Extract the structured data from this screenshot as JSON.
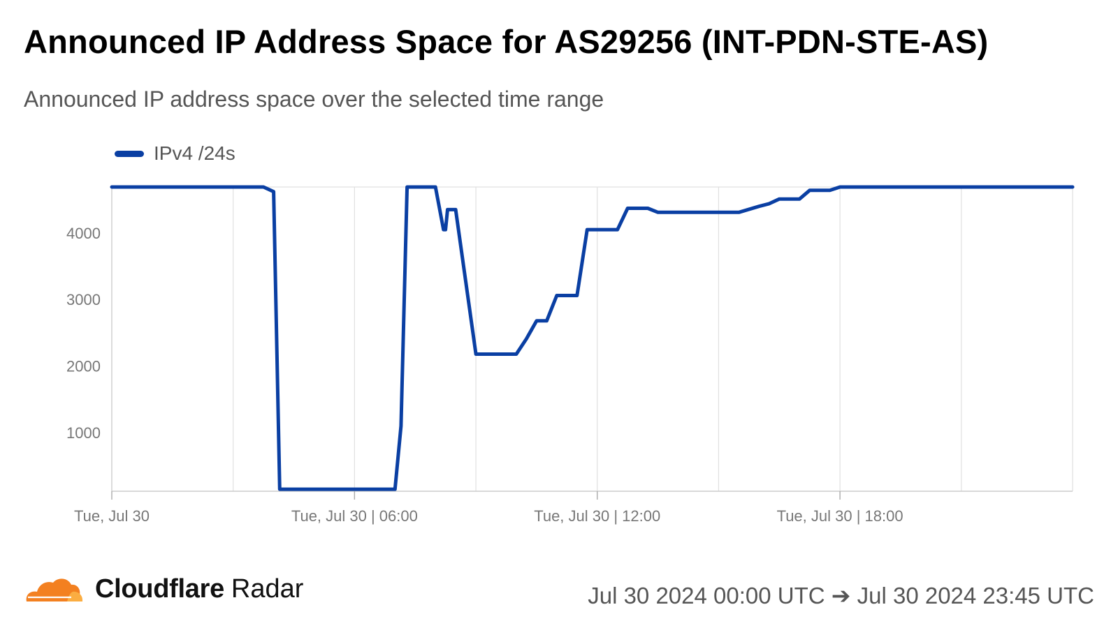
{
  "header": {
    "title": "Announced IP Address Space for AS29256 (INT-PDN-STE-AS)",
    "subtitle": "Announced IP address space over the selected time range"
  },
  "footer": {
    "brand_strong": "Cloudflare",
    "brand_light": "Radar",
    "range_start": "Jul 30 2024 00:00 UTC",
    "range_arrow": "➔",
    "range_end": "Jul 30 2024 23:45 UTC"
  },
  "colors": {
    "series": "#0a3fa3",
    "grid": "#e0e0e0",
    "axis": "#cccccc",
    "logo_orange": "#f38020",
    "logo_light": "#fbad41"
  },
  "icons": {
    "logo": "cloudflare-cloud-icon"
  },
  "chart_data": {
    "type": "line",
    "title": "Announced IP Address Space for AS29256 (INT-PDN-STE-AS)",
    "subtitle": "Announced IP address space over the selected time range",
    "x_unit": "hours",
    "xlim": [
      0,
      23.75
    ],
    "ylim": [
      120,
      4690
    ],
    "yticks": [
      1000,
      2000,
      3000,
      4000
    ],
    "ytick_labels": [
      "1000",
      "2000",
      "3000",
      "4000"
    ],
    "xticks": [
      0,
      6,
      12,
      18
    ],
    "xtick_labels": [
      "Tue, Jul 30",
      "Tue, Jul 30 | 06:00",
      "Tue, Jul 30 | 12:00",
      "Tue, Jul 30 | 18:00"
    ],
    "grid": true,
    "legend_position": "top-left",
    "series": [
      {
        "name": "IPv4 /24s",
        "color": "#0a3fa3",
        "x": [
          0,
          3.75,
          4.0,
          4.15,
          4.3,
          6.0,
          7.0,
          7.15,
          7.3,
          7.45,
          7.6,
          8.0,
          8.2,
          8.25,
          8.3,
          8.5,
          9.0,
          9.5,
          10.0,
          10.25,
          10.5,
          10.75,
          11.0,
          11.25,
          11.5,
          11.75,
          12.0,
          12.5,
          12.75,
          13.0,
          13.25,
          13.5,
          13.75,
          14.0,
          14.5,
          15.0,
          15.5,
          16.0,
          16.25,
          16.5,
          16.75,
          17.0,
          17.25,
          17.5,
          17.75,
          18.0,
          18.25,
          18.5,
          18.75,
          19.0,
          19.5,
          20.0,
          20.5,
          21.0,
          21.5,
          22.0,
          22.5,
          23.0,
          23.5,
          23.75
        ],
        "y": [
          4690,
          4690,
          4620,
          150,
          150,
          150,
          150,
          1100,
          4690,
          4690,
          4690,
          4690,
          4050,
          4050,
          4350,
          4350,
          2180,
          2180,
          2180,
          2410,
          2680,
          2680,
          3060,
          3060,
          3060,
          4050,
          4050,
          4050,
          4370,
          4370,
          4370,
          4310,
          4310,
          4310,
          4310,
          4310,
          4310,
          4400,
          4440,
          4510,
          4510,
          4510,
          4640,
          4640,
          4640,
          4690,
          4690,
          4690,
          4690,
          4690,
          4690,
          4690,
          4690,
          4690,
          4690,
          4690,
          4690,
          4690,
          4690,
          4690
        ]
      }
    ]
  }
}
